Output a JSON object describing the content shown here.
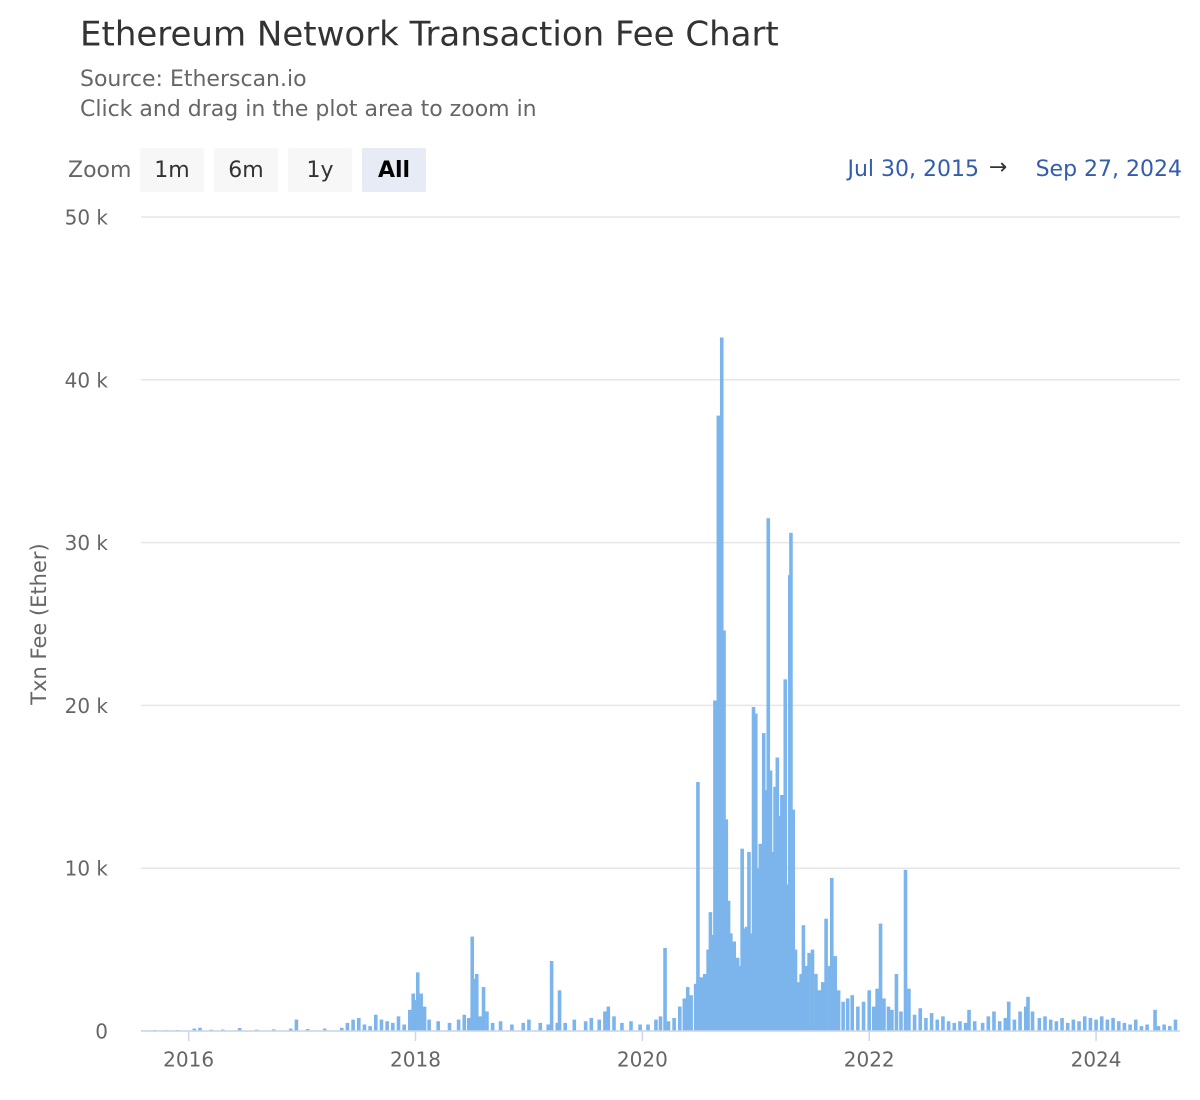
{
  "chart_data": {
    "type": "bar",
    "title": "Ethereum Network Transaction Fee Chart",
    "subtitle": "Source: Etherscan.io",
    "caption": "Click and drag in the plot area to zoom in",
    "y_label": "Txn Fee (Ether)",
    "color": "#7cb5ec",
    "grid": true,
    "xlim": [
      2015.58,
      2024.74
    ],
    "xticks": [
      2016,
      2018,
      2020,
      2022,
      2024
    ],
    "ylim": [
      0,
      50000
    ],
    "yticks": [
      0,
      {
        "value": 10000,
        "label": "10 k"
      },
      {
        "value": 20000,
        "label": "20 k"
      },
      {
        "value": 30000,
        "label": "30 k"
      },
      {
        "value": 40000,
        "label": "40 k"
      },
      {
        "value": 50000,
        "label": "50 k"
      }
    ],
    "x": [
      2015.6,
      2015.7,
      2015.8,
      2015.9,
      2016.05,
      2016.1,
      2016.2,
      2016.3,
      2016.45,
      2016.6,
      2016.75,
      2016.9,
      2016.95,
      2017.05,
      2017.2,
      2017.35,
      2017.4,
      2017.45,
      2017.5,
      2017.55,
      2017.6,
      2017.65,
      2017.7,
      2017.75,
      2017.8,
      2017.85,
      2017.9,
      2017.95,
      2017.98,
      2018.0,
      2018.02,
      2018.05,
      2018.08,
      2018.12,
      2018.2,
      2018.3,
      2018.38,
      2018.43,
      2018.47,
      2018.5,
      2018.52,
      2018.54,
      2018.57,
      2018.6,
      2018.63,
      2018.68,
      2018.75,
      2018.85,
      2018.95,
      2019.0,
      2019.1,
      2019.17,
      2019.2,
      2019.25,
      2019.27,
      2019.32,
      2019.4,
      2019.5,
      2019.55,
      2019.62,
      2019.67,
      2019.7,
      2019.75,
      2019.82,
      2019.9,
      2019.98,
      2020.05,
      2020.12,
      2020.16,
      2020.2,
      2020.23,
      2020.28,
      2020.33,
      2020.37,
      2020.4,
      2020.43,
      2020.47,
      2020.49,
      2020.52,
      2020.55,
      2020.58,
      2020.6,
      2020.62,
      2020.64,
      2020.65,
      2020.67,
      2020.69,
      2020.7,
      2020.72,
      2020.74,
      2020.76,
      2020.78,
      2020.81,
      2020.84,
      2020.86,
      2020.88,
      2020.9,
      2020.92,
      2020.94,
      2020.96,
      2020.98,
      2021.0,
      2021.02,
      2021.04,
      2021.07,
      2021.09,
      2021.11,
      2021.13,
      2021.15,
      2021.17,
      2021.19,
      2021.21,
      2021.23,
      2021.26,
      2021.28,
      2021.3,
      2021.31,
      2021.33,
      2021.35,
      2021.37,
      2021.4,
      2021.42,
      2021.44,
      2021.47,
      2021.5,
      2021.53,
      2021.56,
      2021.59,
      2021.62,
      2021.65,
      2021.67,
      2021.7,
      2021.73,
      2021.77,
      2021.81,
      2021.85,
      2021.9,
      2021.95,
      2022.0,
      2022.04,
      2022.07,
      2022.1,
      2022.13,
      2022.17,
      2022.2,
      2022.24,
      2022.28,
      2022.32,
      2022.35,
      2022.4,
      2022.45,
      2022.5,
      2022.55,
      2022.6,
      2022.65,
      2022.7,
      2022.75,
      2022.8,
      2022.85,
      2022.88,
      2022.93,
      2023.0,
      2023.05,
      2023.1,
      2023.15,
      2023.2,
      2023.23,
      2023.28,
      2023.33,
      2023.38,
      2023.4,
      2023.44,
      2023.5,
      2023.55,
      2023.6,
      2023.65,
      2023.7,
      2023.75,
      2023.8,
      2023.85,
      2023.9,
      2023.95,
      2024.0,
      2024.05,
      2024.1,
      2024.15,
      2024.2,
      2024.25,
      2024.3,
      2024.35,
      2024.4,
      2024.45,
      2024.52,
      2024.55,
      2024.6,
      2024.65,
      2024.7
    ],
    "values": [
      40,
      60,
      50,
      60,
      150,
      200,
      80,
      90,
      180,
      80,
      100,
      150,
      700,
      120,
      150,
      200,
      500,
      700,
      800,
      400,
      300,
      1000,
      700,
      600,
      500,
      900,
      400,
      1300,
      2300,
      1900,
      3600,
      2300,
      1500,
      700,
      600,
      500,
      700,
      1000,
      800,
      5800,
      3200,
      3500,
      900,
      2700,
      1200,
      500,
      600,
      400,
      500,
      700,
      500,
      400,
      4300,
      500,
      2500,
      500,
      700,
      600,
      800,
      700,
      1200,
      1500,
      900,
      500,
      600,
      400,
      400,
      700,
      900,
      5100,
      600,
      800,
      1500,
      2000,
      2700,
      2200,
      2900,
      15300,
      3300,
      3500,
      5000,
      7300,
      5900,
      20300,
      12500,
      37800,
      21800,
      42600,
      24600,
      13000,
      8000,
      6000,
      5500,
      4500,
      4000,
      11200,
      6300,
      6400,
      11000,
      6000,
      19900,
      19500,
      10000,
      11500,
      18300,
      14800,
      31500,
      16000,
      11000,
      15000,
      16800,
      13200,
      14500,
      21600,
      9000,
      28000,
      30600,
      13600,
      5000,
      3000,
      3500,
      6500,
      4000,
      4800,
      5000,
      3500,
      2500,
      3000,
      6900,
      4000,
      9400,
      4600,
      2500,
      1800,
      2000,
      2200,
      1500,
      1800,
      2500,
      1500,
      2600,
      6600,
      2000,
      1500,
      1300,
      3500,
      1200,
      9900,
      2600,
      1000,
      1400,
      800,
      1100,
      700,
      900,
      600,
      500,
      600,
      500,
      1300,
      600,
      500,
      900,
      1200,
      600,
      800,
      1800,
      700,
      1200,
      1500,
      2100,
      1200,
      800,
      900,
      700,
      600,
      800,
      500,
      700,
      600,
      900,
      800,
      700,
      900,
      700,
      800,
      600,
      500,
      400,
      700,
      300,
      400,
      1300,
      300,
      400,
      300,
      700
    ]
  },
  "zoom": {
    "label": "Zoom",
    "buttons": [
      "1m",
      "6m",
      "1y",
      "All"
    ],
    "selected": "All"
  },
  "range": {
    "from": "Jul 30, 2015",
    "separator": "→",
    "to": "Sep 27, 2024"
  }
}
